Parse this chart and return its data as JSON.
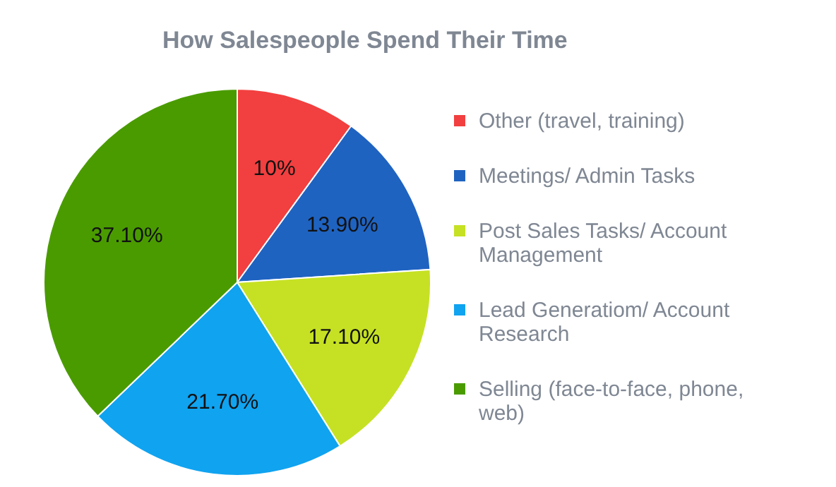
{
  "chart_data": {
    "type": "pie",
    "title": "How Salespeople Spend Their Time",
    "categories": [
      "Other (travel, training)",
      "Meetings/ Admin Tasks",
      "Post Sales Tasks/ Account Management",
      "Lead Generatiom/ Account Research",
      "Selling (face-to-face, phone, web)"
    ],
    "values": [
      10,
      13.9,
      17.1,
      21.7,
      37.1
    ],
    "colors": [
      "#f23f3f",
      "#1f63c1",
      "#c6e123",
      "#10a3f0",
      "#4a9b00"
    ],
    "value_labels": [
      "10%",
      "13.90%",
      "17.10%",
      "21.70%",
      "37.10%"
    ],
    "legend": "right"
  }
}
